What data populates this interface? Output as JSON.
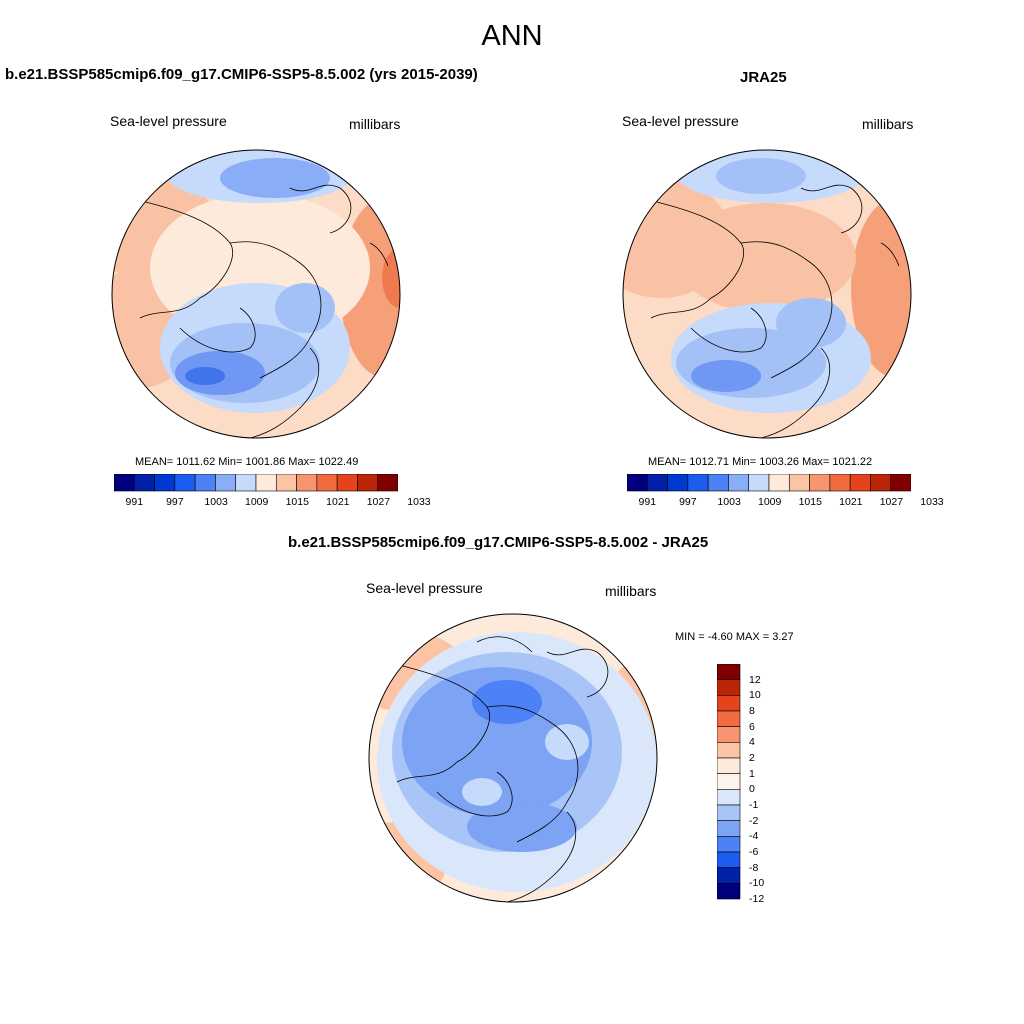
{
  "title": "ANN",
  "panels": {
    "model": {
      "title": "b.e21.BSSP585cmip6.f09_g17.CMIP6-SSP5-8.5.002 (yrs 2015-2039)",
      "variable": "Sea-level pressure",
      "units": "millibars",
      "stats": "MEAN= 1011.62  Min= 1001.86  Max= 1022.49",
      "colorbar_ticks": [
        "991",
        "997",
        "1003",
        "1009",
        "1015",
        "1021",
        "1027",
        "1033"
      ]
    },
    "obs": {
      "title": "JRA25",
      "variable": "Sea-level pressure",
      "units": "millibars",
      "stats": "MEAN= 1012.71  Min= 1003.26  Max= 1021.22",
      "colorbar_ticks": [
        "991",
        "997",
        "1003",
        "1009",
        "1015",
        "1021",
        "1027",
        "1033"
      ]
    },
    "diff": {
      "title": "b.e21.BSSP585cmip6.f09_g17.CMIP6-SSP5-8.5.002 - JRA25",
      "variable": "Sea-level pressure",
      "units": "millibars",
      "stats": "MIN =  -4.60 MAX =   3.27",
      "colorbar_ticks": [
        "12",
        "10",
        "8",
        "6",
        "4",
        "2",
        "1",
        "0",
        "-1",
        "-2",
        "-4",
        "-6",
        "-8",
        "-10",
        "-12"
      ]
    }
  },
  "colors": {
    "pressure_scale": [
      "#00007f",
      "#0021a8",
      "#0039d1",
      "#1d5cf0",
      "#4c82f5",
      "#89aef7",
      "#c6dafb",
      "#fdeadb",
      "#fcc3a4",
      "#f6956f",
      "#f26a3f",
      "#e4431c",
      "#bb2507",
      "#800000"
    ],
    "diff_scale_top_to_bottom": [
      "#800000",
      "#bb2507",
      "#e4431c",
      "#f26a3f",
      "#f6956f",
      "#fcc3a4",
      "#fdeadb",
      "#fdf3ec",
      "#dae7fb",
      "#a9c4f7",
      "#7da3f4",
      "#4c82f5",
      "#1d5cf0",
      "#0021a8",
      "#00007f"
    ]
  }
}
